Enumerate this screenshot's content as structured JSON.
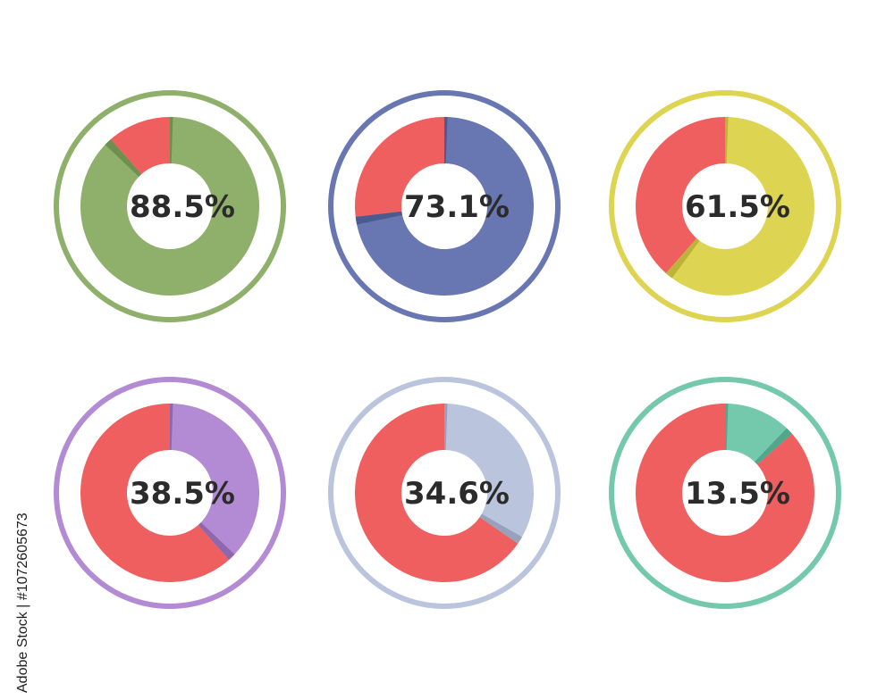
{
  "chart_data": [
    {
      "type": "pie",
      "label": "88.5%",
      "values": [
        88.5,
        11.5
      ],
      "colors": {
        "main": "#8fb06b",
        "shadow": "#6f8f4f",
        "ring": "#8fb06b",
        "rest": "#ef5f5f"
      }
    },
    {
      "type": "pie",
      "label": "73.1%",
      "values": [
        73.1,
        26.9
      ],
      "colors": {
        "main": "#6877b1",
        "shadow": "#4b5a91",
        "ring": "#6877b1",
        "rest": "#ef5f5f"
      }
    },
    {
      "type": "pie",
      "label": "61.5%",
      "values": [
        61.5,
        38.5
      ],
      "colors": {
        "main": "#ddd452",
        "shadow": "#bdb23a",
        "ring": "#ddd452",
        "rest": "#ef5f5f"
      }
    },
    {
      "type": "pie",
      "label": "38.5%",
      "values": [
        38.5,
        61.5
      ],
      "colors": {
        "main": "#b38ad4",
        "shadow": "#8f67ad",
        "ring": "#b38ad4",
        "rest": "#ef5f5f"
      }
    },
    {
      "type": "pie",
      "label": "34.6%",
      "values": [
        34.6,
        65.4
      ],
      "colors": {
        "main": "#bac4dc",
        "shadow": "#97a1bb",
        "ring": "#bac4dc",
        "rest": "#ef5f5f"
      }
    },
    {
      "type": "pie",
      "label": "13.5%",
      "values": [
        13.5,
        86.5
      ],
      "colors": {
        "main": "#74c9ad",
        "shadow": "#51a68b",
        "ring": "#74c9ad",
        "rest": "#ef5f5f"
      }
    }
  ],
  "watermark": {
    "brand": "Adobe Stock",
    "id": "#1072605673"
  }
}
